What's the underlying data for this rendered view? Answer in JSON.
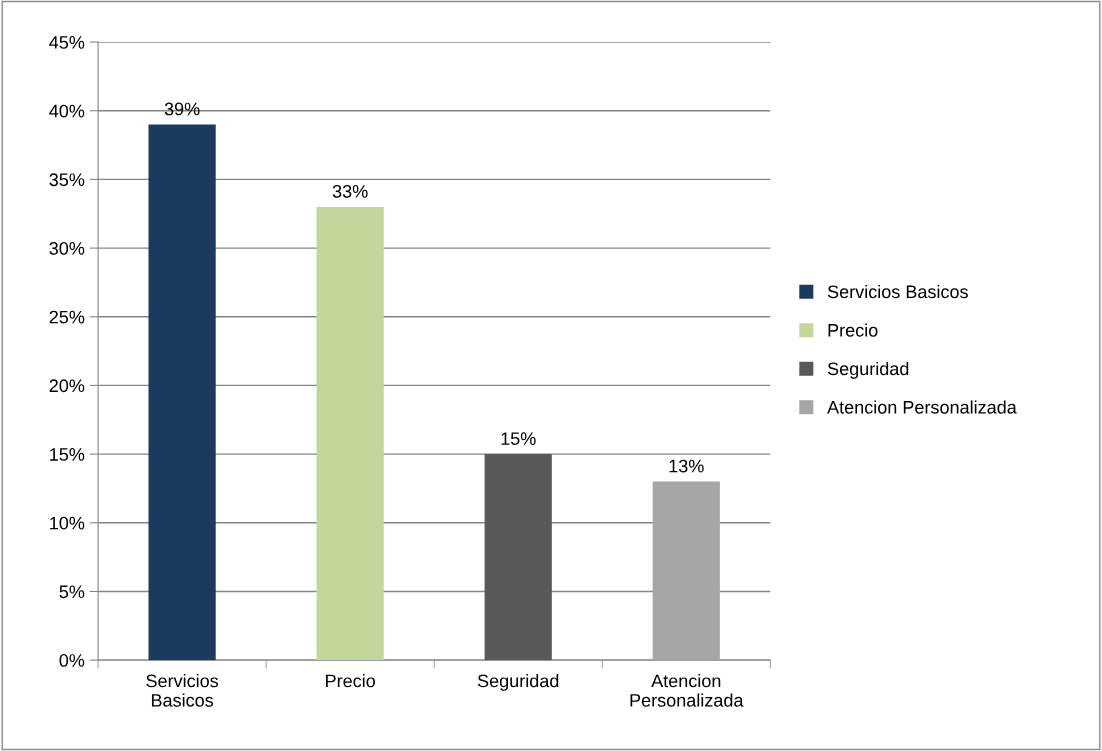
{
  "chart_data": {
    "type": "bar",
    "categories": [
      "Servicios Basicos",
      "Precio",
      "Seguridad",
      "Atencion Personalizada"
    ],
    "series": [
      {
        "name": "Servicios Basicos",
        "color": "#1b3a5f",
        "values": [
          39,
          null,
          null,
          null
        ],
        "value_labels": [
          "39%",
          null,
          null,
          null
        ]
      },
      {
        "name": "Precio",
        "color": "#c4d79b",
        "values": [
          null,
          33,
          null,
          null
        ],
        "value_labels": [
          null,
          "33%",
          null,
          null
        ]
      },
      {
        "name": "Seguridad",
        "color": "#595959",
        "values": [
          null,
          null,
          15,
          null
        ],
        "value_labels": [
          null,
          null,
          "15%",
          null
        ]
      },
      {
        "name": "Atencion Personalizada",
        "color": "#a6a6a6",
        "values": [
          null,
          null,
          null,
          13
        ],
        "value_labels": [
          null,
          null,
          null,
          "13%"
        ]
      }
    ],
    "ylim": [
      0,
      45
    ],
    "yticks": [
      {
        "value": 0,
        "label": "0%"
      },
      {
        "value": 5,
        "label": "5%"
      },
      {
        "value": 10,
        "label": "10%"
      },
      {
        "value": 15,
        "label": "15%"
      },
      {
        "value": 20,
        "label": "20%"
      },
      {
        "value": 25,
        "label": "25%"
      },
      {
        "value": 30,
        "label": "30%"
      },
      {
        "value": 35,
        "label": "35%"
      },
      {
        "value": 40,
        "label": "40%"
      },
      {
        "value": 45,
        "label": "45%"
      }
    ],
    "grid": "y",
    "legend": "right"
  }
}
